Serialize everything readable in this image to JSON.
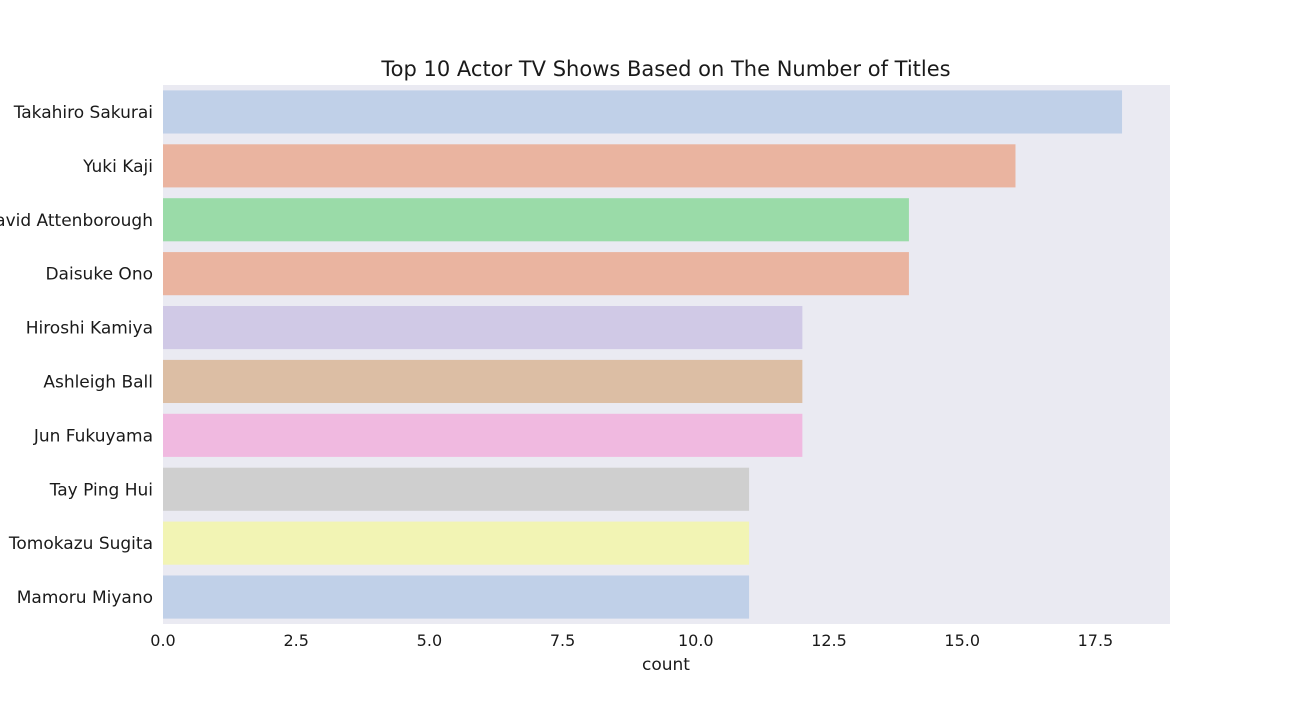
{
  "chart_data": {
    "type": "bar",
    "orientation": "horizontal",
    "title": "Top 10 Actor TV Shows Based on The Number of Titles",
    "xlabel": "count",
    "ylabel": "",
    "xlim": [
      0,
      18.9
    ],
    "xticks": [
      "0.0",
      "2.5",
      "5.0",
      "7.5",
      "10.0",
      "12.5",
      "15.0",
      "17.5"
    ],
    "grid": false,
    "categories": [
      "Takahiro Sakurai",
      "Yuki Kaji",
      "David Attenborough",
      "Daisuke Ono",
      "Hiroshi Kamiya",
      "Ashleigh Ball",
      "Jun Fukuyama",
      "Tay Ping Hui",
      "Tomokazu Sugita",
      "Mamoru Miyano"
    ],
    "values": [
      18,
      16,
      14,
      14,
      12,
      12,
      12,
      11,
      11,
      11
    ],
    "colors": [
      "#c0d0e8",
      "#eab4a0",
      "#9adba8",
      "#eab4a0",
      "#d0c9e6",
      "#dcbea4",
      "#f0b9e0",
      "#cfcfcf",
      "#f2f4b4",
      "#c0d0e8"
    ],
    "background": "#eaeaf2"
  }
}
